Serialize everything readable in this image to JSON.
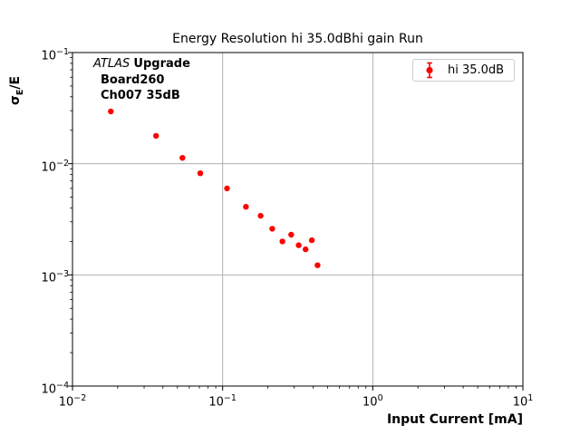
{
  "chart_data": {
    "type": "scatter",
    "title": "Energy Resolution hi 35.0dBhi gain Run",
    "xlabel": "Input Current [mA]",
    "ylabel": "σ_E/E",
    "ylabel_parts": {
      "sym": "σ",
      "sub": "E",
      "rest": "/E"
    },
    "xscale": "log",
    "yscale": "log",
    "xlim": [
      0.01,
      10
    ],
    "ylim": [
      0.0001,
      0.1
    ],
    "xtick_exponents": [
      -2,
      -1,
      0,
      1
    ],
    "ytick_exponents": [
      -1,
      -2,
      -3,
      -4
    ],
    "grid": "major",
    "legend": {
      "label": "hi 35.0dB",
      "position": "upper right"
    },
    "annotation": {
      "line1_italic": "ATLAS",
      "line1_bold": "Upgrade",
      "line2": "Board260",
      "line3": "Ch007 35dB"
    },
    "series": [
      {
        "name": "hi 35.0dB",
        "marker": "circle-errorbar",
        "color": "#ff0000",
        "points": [
          [
            0.018,
            0.0295
          ],
          [
            0.036,
            0.0178
          ],
          [
            0.054,
            0.0113
          ],
          [
            0.071,
            0.0082
          ],
          [
            0.107,
            0.006
          ],
          [
            0.143,
            0.0041
          ],
          [
            0.179,
            0.0034
          ],
          [
            0.214,
            0.0026
          ],
          [
            0.25,
            0.002
          ],
          [
            0.286,
            0.0023
          ],
          [
            0.321,
            0.00185
          ],
          [
            0.357,
            0.0017
          ],
          [
            0.393,
            0.00205
          ],
          [
            0.429,
            0.00122
          ]
        ]
      }
    ],
    "colors": {
      "marker": "#ff0000",
      "grid": "#b0b0b0",
      "spine": "#000000",
      "tick": "#000000",
      "legend_border": "#cccccc",
      "background": "#ffffff"
    }
  }
}
